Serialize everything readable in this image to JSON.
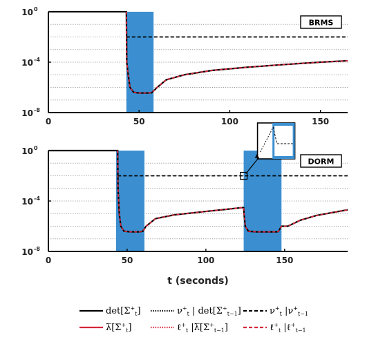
{
  "chart_data": [
    {
      "type": "line",
      "panel_label": "BRMS",
      "xlim": [
        0,
        165
      ],
      "ylim": [
        1e-08,
        1
      ],
      "yscale": "log",
      "xticks": [
        "0",
        "50",
        "100",
        "150"
      ],
      "ytick_bases": [
        "10",
        "10",
        "10"
      ],
      "ytick_exponents": [
        "0",
        "-4",
        "-8"
      ],
      "grid": "horizontal dotted",
      "shaded_regions": [
        [
          43,
          58
        ]
      ],
      "series": [
        {
          "key": "det",
          "points": [
            [
              0,
              1
            ],
            [
              43,
              1
            ],
            [
              43.2,
              0.0001
            ],
            [
              44,
              1e-05
            ],
            [
              45,
              1e-06
            ],
            [
              47,
              4e-07
            ],
            [
              50,
              3.6e-07
            ],
            [
              55,
              3.6e-07
            ],
            [
              57,
              3.8e-07
            ],
            [
              60,
              1e-06
            ],
            [
              65,
              4e-06
            ],
            [
              75,
              1e-05
            ],
            [
              90,
              2.2e-05
            ],
            [
              110,
              4e-05
            ],
            [
              130,
              6.5e-05
            ],
            [
              150,
              0.0001
            ],
            [
              165,
              0.00013
            ]
          ]
        },
        {
          "key": "nu",
          "points": [
            [
              43,
              0.01
            ],
            [
              165,
              0.01
            ]
          ]
        }
      ],
      "inset": null
    },
    {
      "type": "line",
      "panel_label": "DORM",
      "xlim": [
        0,
        190
      ],
      "ylim": [
        1e-08,
        1
      ],
      "yscale": "log",
      "xticks": [
        "0",
        "50",
        "100",
        "150"
      ],
      "xlabel": "t (seconds)",
      "ytick_bases": [
        "10",
        "10",
        "10"
      ],
      "ytick_exponents": [
        "0",
        "-4",
        "-8"
      ],
      "grid": "horizontal dotted",
      "shaded_regions": [
        [
          43,
          61
        ],
        [
          124,
          148
        ]
      ],
      "series": [
        {
          "key": "det",
          "points": [
            [
              0,
              1
            ],
            [
              44,
              1
            ],
            [
              44.2,
              0.001
            ],
            [
              45,
              1e-05
            ],
            [
              46,
              1e-06
            ],
            [
              48,
              4e-07
            ],
            [
              52,
              3.6e-07
            ],
            [
              58,
              3.6e-07
            ],
            [
              60,
              4e-07
            ],
            [
              62,
              1e-06
            ],
            [
              68,
              4e-06
            ],
            [
              80,
              8e-06
            ],
            [
              100,
              1.5e-05
            ],
            [
              110,
              2e-05
            ],
            [
              123,
              3e-05
            ],
            [
              124,
              3e-05
            ],
            [
              124.2,
              1e-05
            ],
            [
              125,
              1e-06
            ],
            [
              127,
              4e-07
            ],
            [
              132,
              3.6e-07
            ],
            [
              145,
              3.6e-07
            ],
            [
              146,
              3.8e-07
            ],
            [
              148,
              1e-06
            ],
            [
              152,
              1e-06
            ],
            [
              160,
              3e-06
            ],
            [
              170,
              7e-06
            ],
            [
              180,
              1.2e-05
            ],
            [
              190,
              2e-05
            ]
          ]
        },
        {
          "key": "nu",
          "points": [
            [
              44,
              0.01
            ],
            [
              190,
              0.01
            ]
          ]
        }
      ],
      "inset": {
        "zoom_x": 124,
        "zoom_y": 0.01
      }
    }
  ],
  "legend": {
    "items": [
      {
        "key": "det",
        "main": "det[Σ",
        "sub": "t",
        "sup": "+",
        "tail": "]",
        "color": "#000000",
        "dash": "solid"
      },
      {
        "key": "nu_det",
        "main": "ν",
        "sub": "t",
        "sup": "+",
        "tail": " | det[Σ",
        "sub2": "t−1",
        "sup2": "+",
        "tail2": "]",
        "color": "#000000",
        "dash": "dotted"
      },
      {
        "key": "nu_nu",
        "main": "ν",
        "sub": "t",
        "sup": "+",
        "tail": " |ν",
        "sub2": "t−1",
        "sup2": "+",
        "tail2": "",
        "color": "#000000",
        "dash": "dashed"
      },
      {
        "key": "lambda",
        "main": "λ̅[Σ",
        "sub": "t",
        "sup": "+",
        "tail": "]",
        "color": "#d6263a",
        "dash": "solid"
      },
      {
        "key": "l_lambda",
        "main": "ℓ",
        "sub": "t",
        "sup": "+",
        "tail": " |λ̅[Σ",
        "sub2": "t−1",
        "sup2": "+",
        "tail2": "]",
        "color": "#d6263a",
        "dash": "dotted"
      },
      {
        "key": "l_l",
        "main": "ℓ",
        "sub": "t",
        "sup": "+",
        "tail": " |ℓ",
        "sub2": "t−1",
        "sup2": "+",
        "tail2": "",
        "color": "#d6263a",
        "dash": "dashed"
      }
    ]
  },
  "colors": {
    "shade": "#3b8fd0",
    "line_black": "#000000",
    "line_red": "#d6263a",
    "grid": "#9a9a9a"
  }
}
